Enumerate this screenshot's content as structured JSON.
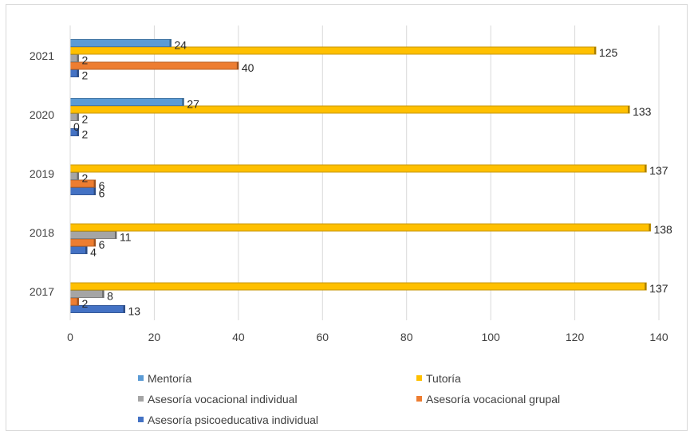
{
  "chart_data": {
    "type": "bar",
    "orientation": "horizontal",
    "categories": [
      "2017",
      "2018",
      "2019",
      "2020",
      "2021"
    ],
    "series": [
      {
        "name": "Asesoría psicoeducativa individual",
        "color": "#4472c4",
        "values": [
          13,
          4,
          6,
          2,
          2
        ]
      },
      {
        "name": "Asesoría vocacional grupal",
        "color": "#ed7d31",
        "values": [
          2,
          6,
          6,
          0,
          40
        ]
      },
      {
        "name": "Asesoría vocacional individual",
        "color": "#a5a5a5",
        "values": [
          8,
          11,
          2,
          2,
          2
        ]
      },
      {
        "name": "Tutoría",
        "color": "#ffc000",
        "values": [
          137,
          138,
          137,
          133,
          125
        ]
      },
      {
        "name": "Mentoría",
        "color": "#5b9bd5",
        "values": [
          null,
          null,
          null,
          27,
          24
        ]
      }
    ],
    "xlim": [
      0,
      140
    ],
    "xticks": [
      0,
      20,
      40,
      60,
      80,
      100,
      120,
      140
    ],
    "grid": true,
    "legend": {
      "position": "bottom",
      "order": [
        "Mentoría",
        "Tutoría",
        "Asesoría vocacional individual",
        "Asesoría vocacional grupal",
        "Asesoría psicoeducativa individual"
      ]
    }
  }
}
